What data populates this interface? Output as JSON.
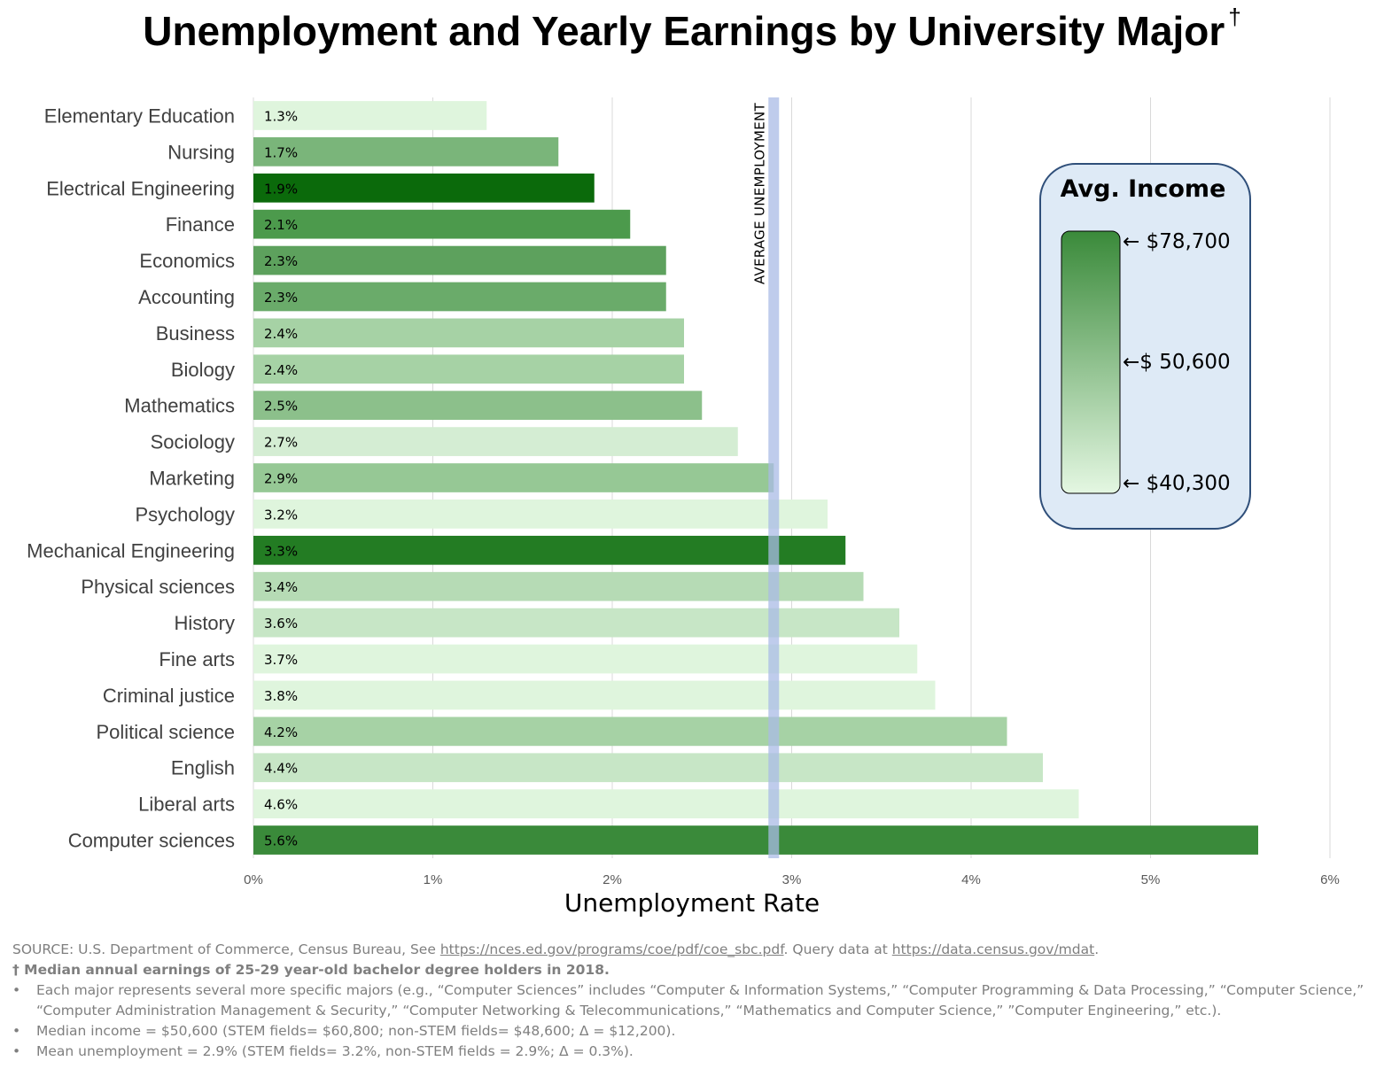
{
  "title": "Unemployment and Yearly Earnings by University Major",
  "title_mark": "†",
  "chart_data": {
    "type": "bar",
    "orientation": "horizontal",
    "xlabel": "Unemployment Rate",
    "xlim": [
      0,
      6
    ],
    "x_ticks": [
      "0%",
      "1%",
      "2%",
      "3%",
      "4%",
      "5%",
      "6%"
    ],
    "grid": true,
    "categories": [
      "Elementary Education",
      "Nursing",
      "Electrical Engineering",
      "Finance",
      "Economics",
      "Accounting",
      "Business",
      "Biology",
      "Mathematics",
      "Sociology",
      "Marketing",
      "Psychology",
      "Mechanical Engineering",
      "Physical sciences",
      "History",
      "Fine arts",
      "Criminal justice",
      "Political science",
      "English",
      "Liberal arts",
      "Computer sciences"
    ],
    "values": [
      1.3,
      1.7,
      1.9,
      2.1,
      2.3,
      2.3,
      2.4,
      2.4,
      2.5,
      2.7,
      2.9,
      3.2,
      3.3,
      3.4,
      3.6,
      3.7,
      3.8,
      4.2,
      4.4,
      4.6,
      5.6
    ],
    "value_labels": [
      "1.3%",
      "1.7%",
      "1.9%",
      "2.1%",
      "2.3%",
      "2.3%",
      "2.4%",
      "2.4%",
      "2.5%",
      "2.7%",
      "2.9%",
      "3.2%",
      "3.3%",
      "3.4%",
      "3.6%",
      "3.7%",
      "3.8%",
      "4.2%",
      "4.4%",
      "4.6%",
      "5.6%"
    ],
    "bar_colors": [
      "#dff5dd",
      "#7ab57a",
      "#0b6a0b",
      "#4c9a4c",
      "#5da15d",
      "#6aab6a",
      "#a6d2a5",
      "#a6d2a5",
      "#8cc08b",
      "#d4edd3",
      "#96c895",
      "#dff5dd",
      "#237c23",
      "#b6dbb5",
      "#c7e6c6",
      "#dff5dd",
      "#dff5dd",
      "#a6d2a5",
      "#c7e6c6",
      "#dff5dd",
      "#3a8a3a"
    ],
    "reference_line": {
      "value": 2.9,
      "label": "AVERAGE UNEMPLOYMENT",
      "color": "#a9bbe6"
    },
    "legend": {
      "title": "Avg. Income",
      "placement": "top-right",
      "ticks": [
        "← $78,700",
        "←$ 50,600",
        "← $40,300"
      ],
      "gradient_top": "#3a8a3a",
      "gradient_bottom": "#e4f7e2",
      "background": "#deeaf6",
      "border": "#2f4f7a"
    }
  },
  "footnotes": {
    "source_prefix": "SOURCE: U.S. Department of Commerce, Census Bureau, See ",
    "source_link1": "https://nces.ed.gov/programs/coe/pdf/coe_sbc.pdf",
    "source_mid": ". Query data at ",
    "source_link2": "https://data.census.gov/mdat",
    "source_suffix": ".",
    "dagger_note": "† Median annual earnings of 25-29 year-old bachelor degree holders in 2018.",
    "bullets": [
      "Each major represents several more specific majors (e.g., “Computer Sciences” includes “Computer & Information Systems,” “Computer Programming & Data Processing,” “Computer Science,” “Computer Administration Management & Security,” “Computer Networking & Telecommunications,” “Mathematics and Computer Science,” ”Computer Engineering,” etc.).",
      "Median income = $50,600 (STEM fields= $60,800; non-STEM fields= $48,600; Δ = $12,200).",
      "Mean unemployment = 2.9% (STEM fields= 3.2%, non-STEM fields = 2.9%; Δ = 0.3%)."
    ]
  }
}
